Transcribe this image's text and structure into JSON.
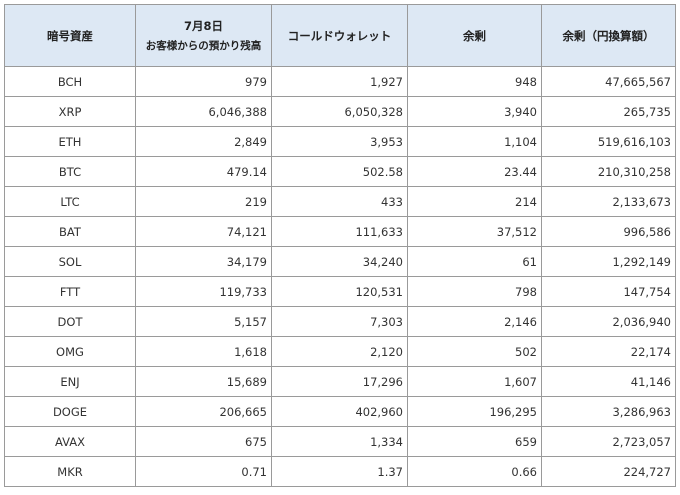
{
  "table": {
    "headers": {
      "asset": "暗号資産",
      "customer_date": "7月8日",
      "customer_label": "お客様からの預かり残高",
      "cold_wallet": "コールドウォレット",
      "surplus": "余剰",
      "surplus_jpy": "余剰（円換算額）"
    },
    "rows": [
      [
        "BCH",
        "979",
        "1,927",
        "948",
        "47,665,567"
      ],
      [
        "XRP",
        "6,046,388",
        "6,050,328",
        "3,940",
        "265,735"
      ],
      [
        "ETH",
        "2,849",
        "3,953",
        "1,104",
        "519,616,103"
      ],
      [
        "BTC",
        "479.14",
        "502.58",
        "23.44",
        "210,310,258"
      ],
      [
        "LTC",
        "219",
        "433",
        "214",
        "2,133,673"
      ],
      [
        "BAT",
        "74,121",
        "111,633",
        "37,512",
        "996,586"
      ],
      [
        "SOL",
        "34,179",
        "34,240",
        "61",
        "1,292,149"
      ],
      [
        "FTT",
        "119,733",
        "120,531",
        "798",
        "147,754"
      ],
      [
        "DOT",
        "5,157",
        "7,303",
        "2,146",
        "2,036,940"
      ],
      [
        "OMG",
        "1,618",
        "2,120",
        "502",
        "22,174"
      ],
      [
        "ENJ",
        "15,689",
        "17,296",
        "1,607",
        "41,146"
      ],
      [
        "DOGE",
        "206,665",
        "402,960",
        "196,295",
        "3,286,963"
      ],
      [
        "AVAX",
        "675",
        "1,334",
        "659",
        "2,723,057"
      ],
      [
        "MKR",
        "0.71",
        "1.37",
        "0.66",
        "224,727"
      ]
    ]
  }
}
